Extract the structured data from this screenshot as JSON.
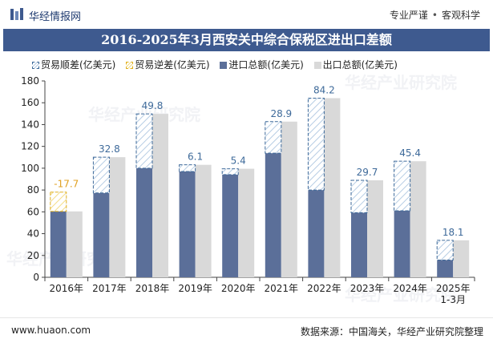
{
  "header": {
    "brand": "华经情报网",
    "tagline_left": "专业严谨",
    "tagline_sep": "•",
    "tagline_right": "客观科学"
  },
  "title": "2016-2025年3月西安关中综合保税区进出口差额",
  "footer": {
    "url": "www.huaon.com",
    "source": "数据来源：中国海关，华经产业研究院整理"
  },
  "watermark": "华经产业研究院",
  "colors": {
    "import": "#5b6f99",
    "export": "#d9d9d9",
    "surplus_stroke": "#3e6a9a",
    "deficit_stroke": "#e0b020",
    "label": "#3e6a9a",
    "deficit_label": "#e0a020",
    "title_bg": "#3e5a8f"
  },
  "chart_data": {
    "type": "bar",
    "title": "2016-2025年3月西安关中综合保税区进出口差额",
    "categories": [
      "2016年",
      "2017年",
      "2018年",
      "2019年",
      "2020年",
      "2021年",
      "2022年",
      "2023年",
      "2024年",
      "2025年 1-3月"
    ],
    "category_lines": [
      [
        "2016年"
      ],
      [
        "2017年"
      ],
      [
        "2018年"
      ],
      [
        "2019年"
      ],
      [
        "2020年"
      ],
      [
        "2021年"
      ],
      [
        "2022年"
      ],
      [
        "2023年"
      ],
      [
        "2024年"
      ],
      [
        "2025年",
        "1-3月"
      ]
    ],
    "series": [
      {
        "name": "进口总额(亿美元)",
        "key": "import",
        "values": [
          78.1,
          77.3,
          100.0,
          97.0,
          94.1,
          113.8,
          80.0,
          59.2,
          61.0,
          15.8
        ]
      },
      {
        "name": "出口总额(亿美元)",
        "key": "export",
        "values": [
          60.4,
          110.1,
          149.8,
          103.1,
          99.5,
          142.7,
          164.2,
          88.9,
          106.4,
          33.9
        ]
      }
    ],
    "balance": {
      "surplus_name": "贸易顺差(亿美元)",
      "deficit_name": "贸易逆差(亿美元)",
      "values": [
        -17.7,
        32.8,
        49.8,
        6.1,
        5.4,
        28.9,
        84.2,
        29.7,
        45.4,
        18.1
      ],
      "labels": [
        "-17.7",
        "32.8",
        "49.8",
        "6.1",
        "5.4",
        "28.9",
        "84.2",
        "29.7",
        "45.4",
        "18.1"
      ]
    },
    "legend": [
      "贸易顺差(亿美元)",
      "贸易逆差(亿美元)",
      "进口总额(亿美元)",
      "出口总额(亿美元)"
    ],
    "yticks": [
      "0",
      "20",
      "40",
      "60",
      "80",
      "100",
      "120",
      "140",
      "160",
      "180"
    ],
    "ylim": [
      0,
      180
    ],
    "legend_position": "top-left",
    "grid": false
  }
}
